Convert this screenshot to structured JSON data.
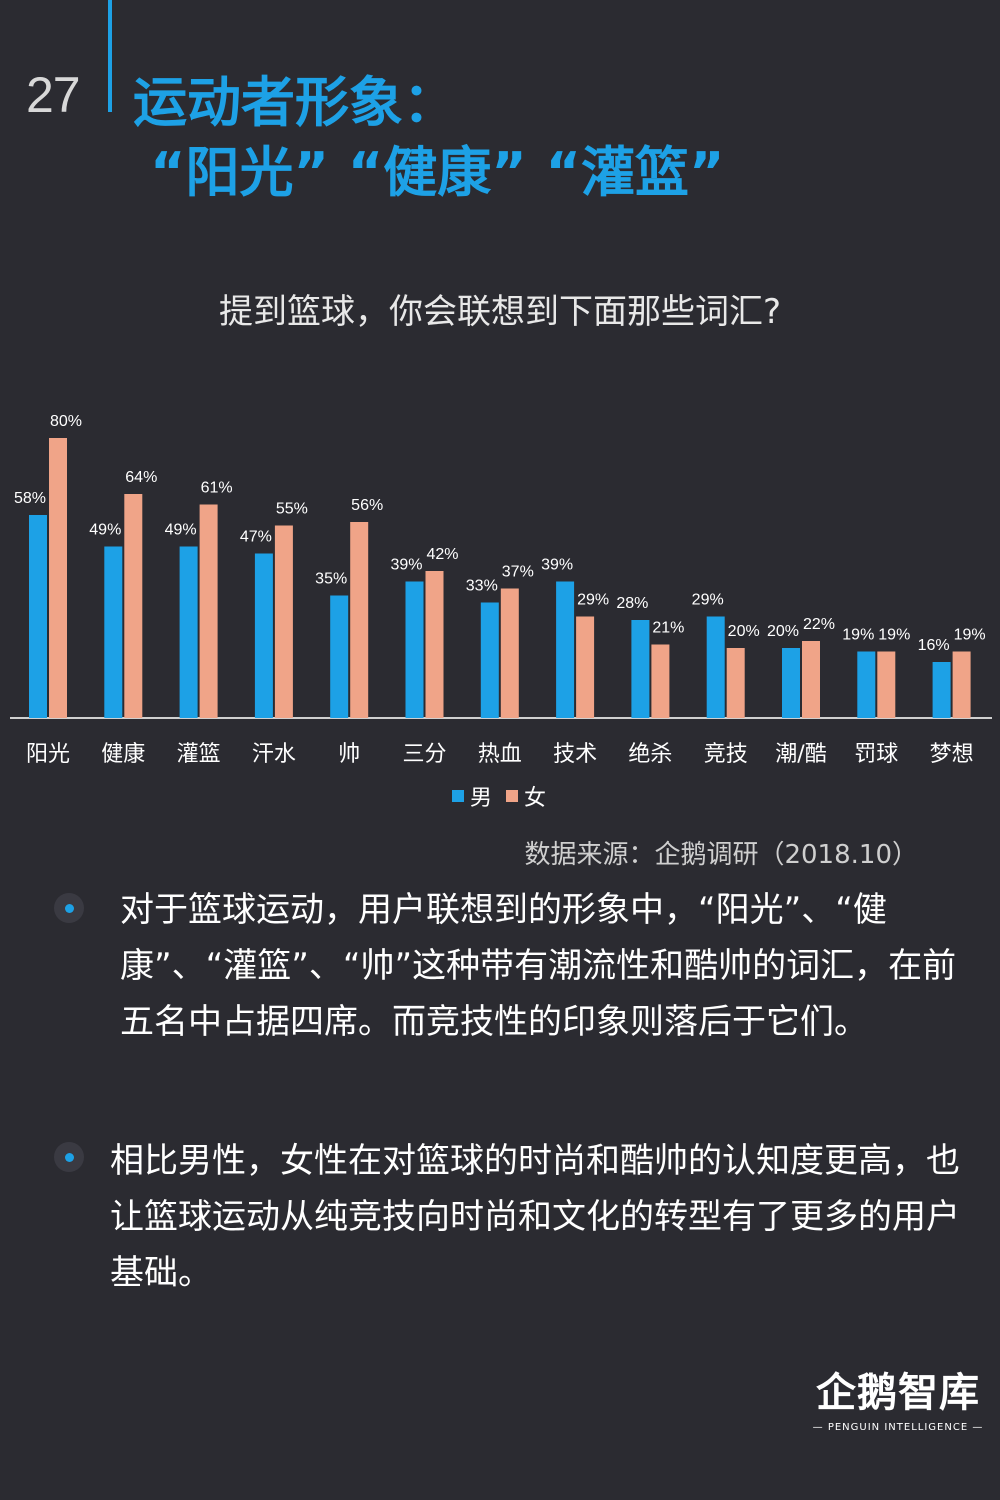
{
  "header": {
    "page_number": "27",
    "title_line1": "运动者形象：",
    "title_line2": "“阳光” “健康” “灌篮”"
  },
  "question": "提到篮球，你会联想到下面那些词汇?",
  "chart_data": {
    "type": "bar",
    "title": "",
    "xlabel": "",
    "ylabel": "",
    "ylim": [
      0,
      100
    ],
    "grid": false,
    "legend_position": "bottom",
    "categories": [
      "阳光",
      "健康",
      "灌篮",
      "汗水",
      "帅",
      "三分",
      "热血",
      "技术",
      "绝杀",
      "竞技",
      "潮/酷",
      "罚球",
      "梦想"
    ],
    "series": [
      {
        "name": "男",
        "color": "#1da1e6",
        "values": [
          58,
          49,
          49,
          47,
          35,
          39,
          33,
          39,
          28,
          29,
          20,
          19,
          16
        ],
        "labels": [
          "58%",
          "49%",
          "49%",
          "47%",
          "35%",
          "39%",
          "33%",
          "39%",
          "28%",
          "29%",
          "20%",
          "19%",
          "16%"
        ]
      },
      {
        "name": "女",
        "color": "#f0a488",
        "values": [
          80,
          64,
          61,
          55,
          56,
          42,
          37,
          29,
          21,
          20,
          22,
          19,
          19
        ],
        "labels": [
          "80%",
          "64%",
          "61%",
          "55%",
          "56%",
          "42%",
          "37%",
          "29%",
          "21%",
          "20%",
          "22%",
          "19%",
          "19%"
        ]
      }
    ]
  },
  "legend": {
    "male": "男",
    "female": "女"
  },
  "source": "数据来源：企鹅调研（2018.10）",
  "bullets": [
    "对于篮球运动，用户联想到的形象中，“阳光”、“健康”、“灌篮”、“帅”这种带有潮流性和酷帅的词汇，在前五名中占据四席。而竞技性的印象则落后于它们。",
    "相比男性，女性在对篮球的时尚和酷帅的认知度更高，也让篮球运动从纯竞技向时尚和文化的转型有了更多的用户基础。"
  ],
  "brand": {
    "name": "企鹅智库",
    "subtitle": "— PENGUIN INTELLIGENCE —"
  },
  "colors": {
    "background": "#2b2b31",
    "accent": "#1da1e6",
    "female": "#f0a488"
  }
}
